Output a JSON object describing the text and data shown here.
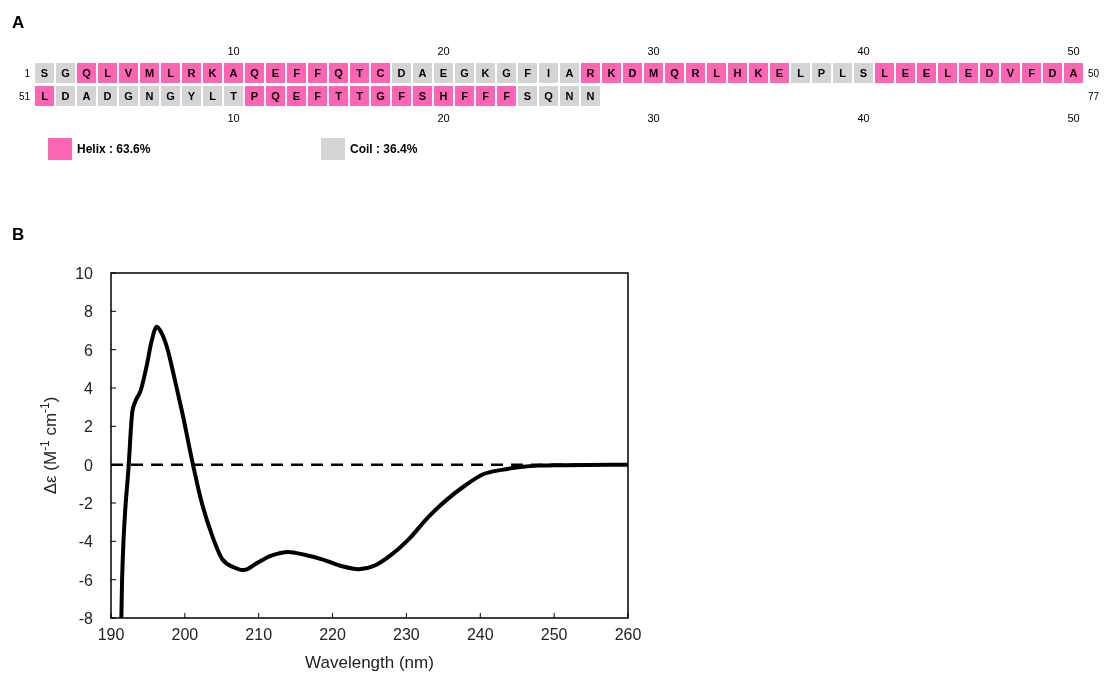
{
  "chart_data": [
    {
      "type": "heatmap",
      "title": "A",
      "categories": [
        null,
        null,
        null,
        null,
        null,
        null,
        null,
        null,
        null,
        "10",
        null,
        null,
        null,
        null,
        null,
        null,
        null,
        null,
        null,
        "20",
        null,
        null,
        null,
        null,
        null,
        null,
        null,
        null,
        null,
        "30",
        null,
        null,
        null,
        null,
        null,
        null,
        null,
        null,
        null,
        "40",
        null,
        null,
        null,
        null,
        null,
        null,
        null,
        null,
        null,
        "50"
      ],
      "y_categories": [
        "1",
        "51"
      ],
      "y2_categories": [
        "50",
        "77"
      ],
      "cells": [
        [
          "S",
          "G",
          "Q",
          "L",
          "V",
          "M",
          "L",
          "R",
          "K",
          "A",
          "Q",
          "E",
          "F",
          "F",
          "Q",
          "T",
          "C",
          "D",
          "A",
          "E",
          "G",
          "K",
          "G",
          "F",
          "I",
          "A",
          "R",
          "K",
          "D",
          "M",
          "Q",
          "R",
          "L",
          "H",
          "K",
          "E",
          "L",
          "P",
          "L",
          "S",
          "L",
          "E",
          "E",
          "L",
          "E",
          "D",
          "V",
          "F",
          "D",
          "A"
        ],
        [
          "L",
          "D",
          "A",
          "D",
          "G",
          "N",
          "G",
          "Y",
          "L",
          "T",
          "P",
          "Q",
          "E",
          "F",
          "T",
          "T",
          "G",
          "F",
          "S",
          "H",
          "F",
          "F",
          "F",
          "S",
          "Q",
          "N",
          "N",
          null,
          null,
          null,
          null,
          null,
          null,
          null,
          null,
          null,
          null,
          null,
          null,
          null,
          null,
          null,
          null,
          null,
          null,
          null,
          null,
          null,
          null,
          null
        ]
      ],
      "colors": [
        [
          "#d4d4d4",
          "#d4d4d4",
          "#fc64b4",
          "#fc64b4",
          "#fc64b4",
          "#fc64b4",
          "#fc64b4",
          "#fc64b4",
          "#fc64b4",
          "#fc64b4",
          "#fc64b4",
          "#fc64b4",
          "#fc64b4",
          "#fc64b4",
          "#fc64b4",
          "#fc64b4",
          "#fc64b4",
          "#d4d4d4",
          "#d4d4d4",
          "#d4d4d4",
          "#d4d4d4",
          "#d4d4d4",
          "#d4d4d4",
          "#d4d4d4",
          "#d4d4d4",
          "#d4d4d4",
          "#fc64b4",
          "#fc64b4",
          "#fc64b4",
          "#fc64b4",
          "#fc64b4",
          "#fc64b4",
          "#fc64b4",
          "#fc64b4",
          "#fc64b4",
          "#fc64b4",
          "#d4d4d4",
          "#d4d4d4",
          "#d4d4d4",
          "#d4d4d4",
          "#fc64b4",
          "#fc64b4",
          "#fc64b4",
          "#fc64b4",
          "#fc64b4",
          "#fc64b4",
          "#fc64b4",
          "#fc64b4",
          "#fc64b4",
          "#fc64b4"
        ],
        [
          "#fc64b4",
          "#d4d4d4",
          "#d4d4d4",
          "#d4d4d4",
          "#d4d4d4",
          "#d4d4d4",
          "#d4d4d4",
          "#d4d4d4",
          "#d4d4d4",
          "#d4d4d4",
          "#fc64b4",
          "#fc64b4",
          "#fc64b4",
          "#fc64b4",
          "#fc64b4",
          "#fc64b4",
          "#fc64b4",
          "#fc64b4",
          "#fc64b4",
          "#fc64b4",
          "#fc64b4",
          "#fc64b4",
          "#fc64b4",
          "#d4d4d4",
          "#d4d4d4",
          "#d4d4d4",
          "#d4d4d4",
          null,
          null,
          null,
          null,
          null,
          null,
          null,
          null,
          null,
          null,
          null,
          null,
          null,
          null,
          null,
          null,
          null,
          null,
          null,
          null,
          null,
          null,
          null
        ]
      ],
      "series": [
        {
          "name": "Helix : 63.6%",
          "color": "#fc64b4",
          "values": [
            null,
            null,
            null,
            null,
            null,
            null,
            null,
            null,
            null,
            null,
            null,
            null,
            null,
            null,
            null,
            null,
            null,
            null,
            null,
            null,
            null,
            null,
            null,
            null,
            null,
            null,
            null,
            null,
            null,
            null,
            null,
            null,
            null,
            null,
            null,
            null,
            null,
            null,
            null,
            null,
            null,
            null,
            null,
            null,
            null,
            null,
            null,
            null,
            null,
            null
          ]
        },
        {
          "name": "Coil : 36.4%",
          "color": "#d4d4d4",
          "values": [
            null,
            null,
            null,
            null,
            null,
            null,
            null,
            null,
            null,
            null,
            null,
            null,
            null,
            null,
            null,
            null,
            null,
            null,
            null,
            null,
            null,
            null,
            null,
            null,
            null,
            null,
            null,
            null,
            null,
            null,
            null,
            null,
            null,
            null,
            null,
            null,
            null,
            null,
            null,
            null,
            null,
            null,
            null,
            null,
            null,
            null,
            null,
            null,
            null,
            null
          ]
        }
      ],
      "legend": "bottom"
    },
    {
      "type": "line",
      "title": "B",
      "xlabel": "Wavelength (nm)",
      "ylabel": "Δε (M$^{-1}$ cm$^{-1}$)",
      "xlim": [
        190,
        260
      ],
      "xticks": [
        190,
        200,
        210,
        220,
        230,
        240,
        250,
        260
      ],
      "ylim": [
        -8,
        10
      ],
      "yticks": [
        -8,
        -6,
        -4,
        -2,
        0,
        2,
        4,
        6,
        8,
        10
      ],
      "ref_lines": [
        {
          "axis": "y",
          "value": 0,
          "line_style": "dashed",
          "color": "#000000"
        }
      ],
      "series": [
        {
          "color": "#000000",
          "x": [
            191.4,
            191.5,
            192.4,
            192.9,
            193.3,
            194.0,
            194.8,
            195.5,
            196.2,
            196.8,
            197.6,
            198.6,
            199.6,
            201.1,
            202.1,
            203.6,
            205.1,
            206.6,
            208.0,
            209.7,
            211.7,
            214.0,
            216.2,
            218.7,
            221.3,
            223.5,
            225.8,
            227.8,
            230.3,
            232.8,
            235.4,
            237.9,
            240.4,
            242.9,
            245.5,
            248.0,
            250.5,
            254.5,
            260
          ],
          "values": [
            -8,
            -6,
            0,
            2.8,
            3.3,
            3.85,
            5.1,
            6.45,
            7.2,
            6.9,
            6.1,
            4.5,
            2.8,
            0,
            -1.7,
            -3.6,
            -4.95,
            -5.35,
            -5.5,
            -5.15,
            -4.75,
            -4.55,
            -4.7,
            -4.95,
            -5.3,
            -5.45,
            -5.25,
            -4.75,
            -3.9,
            -2.8,
            -1.85,
            -1.1,
            -0.5,
            -0.27,
            -0.12,
            -0.05,
            -0.03,
            -0.02,
            0
          ]
        }
      ],
      "line_style": "solid",
      "marker": "none",
      "grid": false
    }
  ]
}
